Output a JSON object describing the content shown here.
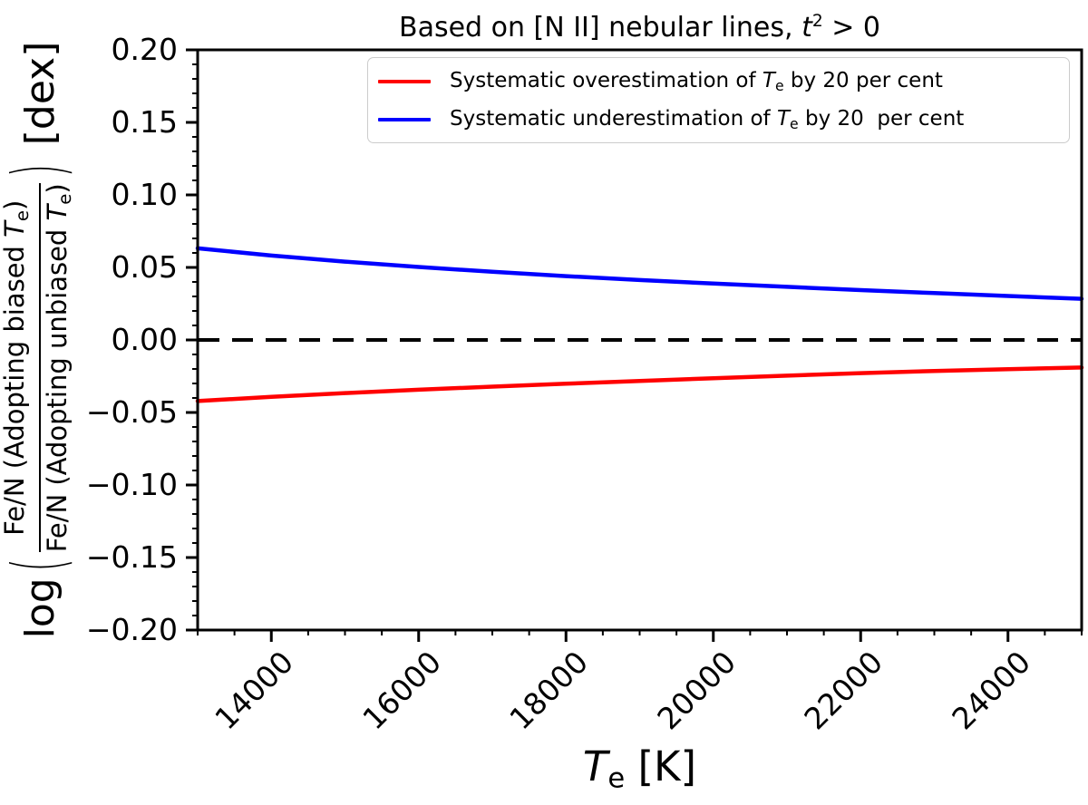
{
  "title": {
    "prefix": "Based on [N II] nebular lines, ",
    "var": "t",
    "exponent": "2",
    "suffix": " > 0"
  },
  "xlabel": {
    "sym": "T",
    "sub": "e",
    "suffix": " [K]"
  },
  "ylabel": {
    "func": "log",
    "open_paren": "(",
    "numerator_prefix": "Fe/N (Adopting biased ",
    "denominator_prefix": "Fe/N (Adopting unbiased ",
    "sym": "T",
    "sub": "e",
    "close": ")",
    "close_paren": ")",
    "unit": " [dex]"
  },
  "legend": {
    "items": [
      {
        "prefix": "Systematic overestimation of ",
        "sym": "T",
        "sub": "e",
        "suffix": " by 20 per cent"
      },
      {
        "prefix": "Systematic underestimation of ",
        "sym": "T",
        "sub": "e",
        "suffix": " by 20  per cent"
      }
    ]
  },
  "chart_data": {
    "type": "line",
    "title": "Based on [N II] nebular lines, t² > 0",
    "xlabel": "T_e [K]",
    "ylabel": "log( Fe/N(Adopting biased T_e) / Fe/N(Adopting unbiased T_e) ) [dex]",
    "xlim": [
      13000,
      25000
    ],
    "ylim": [
      -0.2,
      0.2
    ],
    "grid": false,
    "legend_position": "upper center",
    "x_ticks": [
      {
        "v": 14000,
        "label": "14000"
      },
      {
        "v": 16000,
        "label": "16000"
      },
      {
        "v": 18000,
        "label": "18000"
      },
      {
        "v": 20000,
        "label": "20000"
      },
      {
        "v": 22000,
        "label": "22000"
      },
      {
        "v": 24000,
        "label": "24000"
      }
    ],
    "x_minor_step": 500,
    "y_ticks": [
      {
        "v": 0.2,
        "label": "0.20"
      },
      {
        "v": 0.15,
        "label": "0.15"
      },
      {
        "v": 0.1,
        "label": "0.10"
      },
      {
        "v": 0.05,
        "label": "0.05"
      },
      {
        "v": 0.0,
        "label": "0.00"
      },
      {
        "v": -0.05,
        "label": "−0.05"
      },
      {
        "v": -0.1,
        "label": "−0.10"
      },
      {
        "v": -0.15,
        "label": "−0.15"
      },
      {
        "v": -0.2,
        "label": "−0.20"
      }
    ],
    "y_minor_step": 0.01,
    "reference_line": {
      "y": 0.0,
      "color": "#000000",
      "style": "dashed"
    },
    "x": [
      13000,
      14000,
      15000,
      16000,
      17000,
      18000,
      19000,
      20000,
      21000,
      22000,
      23000,
      24000,
      25000
    ],
    "series": [
      {
        "name": "Systematic overestimation of T_e by 20 per cent",
        "color": "#ff0000",
        "y": [
          -0.0421,
          -0.0392,
          -0.0366,
          -0.0343,
          -0.0322,
          -0.0302,
          -0.0283,
          -0.0264,
          -0.0246,
          -0.0229,
          -0.0214,
          -0.0201,
          -0.019
        ]
      },
      {
        "name": "Systematic underestimation of T_e by 20  per cent",
        "color": "#0000ff",
        "y": [
          0.0632,
          0.0582,
          0.054,
          0.0503,
          0.047,
          0.044,
          0.0413,
          0.0389,
          0.0366,
          0.0344,
          0.0323,
          0.0303,
          0.0284
        ]
      }
    ]
  }
}
